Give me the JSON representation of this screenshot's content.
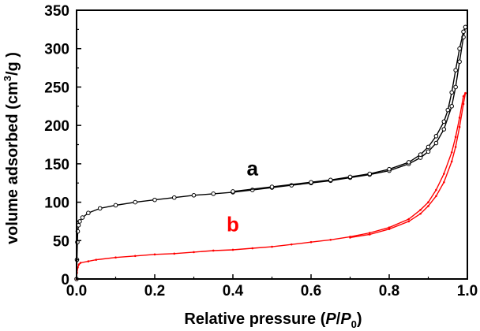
{
  "chart_data": {
    "type": "line",
    "xlabel": "Relative pressure (P/P0)",
    "xlabel_parts": {
      "prefix": "Relative pressure (",
      "p": "P",
      "slash": "/",
      "p0": "P",
      "p0_sub": "0",
      "suffix": ")"
    },
    "ylabel": "volume adsorbed (cm3/g)",
    "ylabel_parts": {
      "prefix": "volume adsorbed  (cm",
      "sup": "3",
      "suffix": "/g )"
    },
    "xlim": [
      0.0,
      1.0
    ],
    "ylim": [
      0,
      350
    ],
    "x_ticks": [
      "0.0",
      "0.2",
      "0.4",
      "0.6",
      "0.8",
      "1.0"
    ],
    "y_ticks": [
      "0",
      "50",
      "100",
      "150",
      "200",
      "250",
      "300",
      "350"
    ],
    "grid": false,
    "series": [
      {
        "name": "a",
        "color": "#000000",
        "marker": "open-circle",
        "label_position": [
          0.45,
          135
        ],
        "adsorption": [
          [
            0.0,
            0
          ],
          [
            0.001,
            25
          ],
          [
            0.002,
            48
          ],
          [
            0.003,
            62
          ],
          [
            0.005,
            70
          ],
          [
            0.008,
            75
          ],
          [
            0.015,
            80
          ],
          [
            0.03,
            86
          ],
          [
            0.06,
            92
          ],
          [
            0.1,
            96
          ],
          [
            0.15,
            100
          ],
          [
            0.2,
            103
          ],
          [
            0.25,
            106
          ],
          [
            0.3,
            109
          ],
          [
            0.35,
            111
          ],
          [
            0.4,
            113
          ],
          [
            0.45,
            116
          ],
          [
            0.5,
            119
          ],
          [
            0.55,
            122
          ],
          [
            0.6,
            125
          ],
          [
            0.65,
            128
          ],
          [
            0.7,
            132
          ],
          [
            0.75,
            136
          ],
          [
            0.8,
            141
          ],
          [
            0.85,
            150
          ],
          [
            0.88,
            158
          ],
          [
            0.9,
            166
          ],
          [
            0.92,
            177
          ],
          [
            0.94,
            195
          ],
          [
            0.96,
            225
          ],
          [
            0.97,
            250
          ],
          [
            0.98,
            283
          ],
          [
            0.99,
            315
          ],
          [
            0.995,
            328
          ]
        ],
        "desorption": [
          [
            0.995,
            328
          ],
          [
            0.99,
            322
          ],
          [
            0.98,
            300
          ],
          [
            0.97,
            272
          ],
          [
            0.96,
            243
          ],
          [
            0.95,
            220
          ],
          [
            0.94,
            205
          ],
          [
            0.92,
            186
          ],
          [
            0.9,
            172
          ],
          [
            0.88,
            162
          ],
          [
            0.85,
            152
          ],
          [
            0.8,
            143
          ],
          [
            0.75,
            137
          ],
          [
            0.7,
            133
          ],
          [
            0.65,
            129
          ],
          [
            0.6,
            126
          ],
          [
            0.5,
            120
          ],
          [
            0.4,
            114
          ]
        ]
      },
      {
        "name": "b",
        "color": "#ff0000",
        "marker": "small-dot",
        "label_position": [
          0.4,
          62
        ],
        "adsorption": [
          [
            0.0,
            0
          ],
          [
            0.001,
            8
          ],
          [
            0.003,
            15
          ],
          [
            0.006,
            19
          ],
          [
            0.01,
            21
          ],
          [
            0.03,
            23
          ],
          [
            0.05,
            25
          ],
          [
            0.1,
            28
          ],
          [
            0.15,
            30
          ],
          [
            0.2,
            32
          ],
          [
            0.25,
            33
          ],
          [
            0.3,
            35
          ],
          [
            0.35,
            37
          ],
          [
            0.4,
            38
          ],
          [
            0.45,
            40
          ],
          [
            0.5,
            42
          ],
          [
            0.55,
            45
          ],
          [
            0.6,
            48
          ],
          [
            0.65,
            51
          ],
          [
            0.7,
            55
          ],
          [
            0.75,
            60
          ],
          [
            0.8,
            67
          ],
          [
            0.85,
            78
          ],
          [
            0.88,
            90
          ],
          [
            0.9,
            100
          ],
          [
            0.92,
            116
          ],
          [
            0.94,
            137
          ],
          [
            0.96,
            165
          ],
          [
            0.97,
            185
          ],
          [
            0.98,
            210
          ],
          [
            0.99,
            238
          ],
          [
            0.995,
            242
          ]
        ],
        "desorption": [
          [
            0.995,
            242
          ],
          [
            0.99,
            228
          ],
          [
            0.98,
            198
          ],
          [
            0.97,
            172
          ],
          [
            0.96,
            153
          ],
          [
            0.94,
            126
          ],
          [
            0.92,
            108
          ],
          [
            0.9,
            95
          ],
          [
            0.88,
            85
          ],
          [
            0.85,
            75
          ],
          [
            0.8,
            65
          ],
          [
            0.75,
            58
          ],
          [
            0.7,
            54
          ]
        ]
      }
    ]
  }
}
